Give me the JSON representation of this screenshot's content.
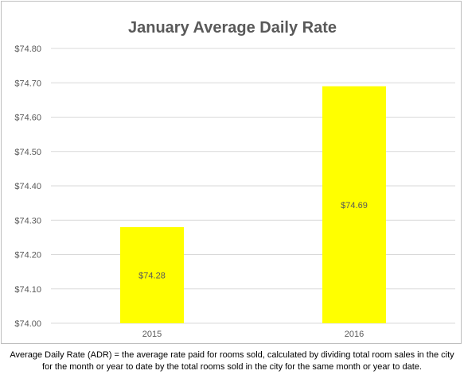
{
  "chart_data": {
    "type": "bar",
    "title": "January Average Daily Rate",
    "categories": [
      "2015",
      "2016"
    ],
    "values": [
      74.28,
      74.69
    ],
    "data_labels": [
      "$74.28",
      "$74.69"
    ],
    "ylim": [
      74.0,
      74.8
    ],
    "y_ticks": [
      74.0,
      74.1,
      74.2,
      74.3,
      74.4,
      74.5,
      74.6,
      74.7,
      74.8
    ],
    "y_tick_labels": [
      "$74.00",
      "$74.10",
      "$74.20",
      "$74.30",
      "$74.40",
      "$74.50",
      "$74.60",
      "$74.70",
      "$74.80"
    ],
    "xlabel": "",
    "ylabel": "",
    "grid": true,
    "legend": "none",
    "bar_color": "#ffff00",
    "grid_color": "#d9d9d9",
    "title_color": "#595959",
    "label_color": "#595959"
  },
  "footnote": {
    "line1": "Average Daily Rate (ADR) = the average rate paid for rooms sold, calculated by dividing total room sales in the city",
    "line2": "for the month or year to date by the total rooms sold in the city for the same month or year to date."
  }
}
